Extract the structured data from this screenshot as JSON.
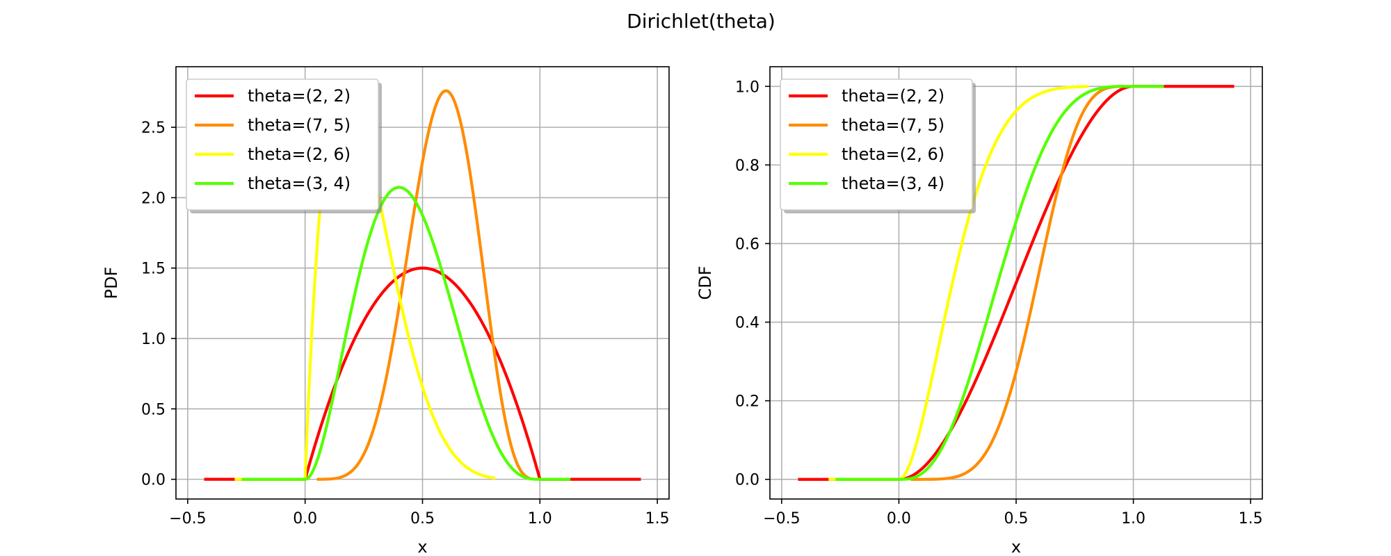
{
  "figure": {
    "title": "Dirichlet(theta)",
    "background": "#ffffff"
  },
  "chart_data": [
    {
      "type": "line",
      "title": "",
      "xlabel": "x",
      "ylabel": "PDF",
      "xlim": [
        -0.55,
        1.55
      ],
      "ylim": [
        -0.14,
        2.93
      ],
      "xticks": [
        -0.5,
        0.0,
        0.5,
        1.0,
        1.5
      ],
      "xtick_labels": [
        "−0.5",
        "0.0",
        "0.5",
        "1.0",
        "1.5"
      ],
      "yticks": [
        0.0,
        0.5,
        1.0,
        1.5,
        2.0,
        2.5
      ],
      "ytick_labels": [
        "0.0",
        "0.5",
        "1.0",
        "1.5",
        "2.0",
        "2.5"
      ],
      "grid": true,
      "legend": "upper-left",
      "function": "pdf",
      "series": [
        {
          "name": "theta=(2, 2)",
          "a": 2,
          "b": 2,
          "color": "#ff0000",
          "xrange": [
            -0.43,
            1.43
          ]
        },
        {
          "name": "theta=(7, 5)",
          "a": 7,
          "b": 5,
          "color": "#ff8c00",
          "xrange": [
            0.05,
            0.96
          ]
        },
        {
          "name": "theta=(2, 6)",
          "a": 2,
          "b": 6,
          "color": "#ffff00",
          "xrange": [
            -0.3,
            0.81
          ]
        },
        {
          "name": "theta=(3, 4)",
          "a": 3,
          "b": 4,
          "color": "#55ff00",
          "xrange": [
            -0.27,
            1.13
          ]
        }
      ]
    },
    {
      "type": "line",
      "title": "",
      "xlabel": "x",
      "ylabel": "CDF",
      "xlim": [
        -0.55,
        1.55
      ],
      "ylim": [
        -0.05,
        1.05
      ],
      "xticks": [
        -0.5,
        0.0,
        0.5,
        1.0,
        1.5
      ],
      "xtick_labels": [
        "−0.5",
        "0.0",
        "0.5",
        "1.0",
        "1.5"
      ],
      "yticks": [
        0.0,
        0.2,
        0.4,
        0.6,
        0.8,
        1.0
      ],
      "ytick_labels": [
        "0.0",
        "0.2",
        "0.4",
        "0.6",
        "0.8",
        "1.0"
      ],
      "grid": true,
      "legend": "upper-left",
      "function": "cdf",
      "series": [
        {
          "name": "theta=(2, 2)",
          "a": 2,
          "b": 2,
          "color": "#ff0000",
          "xrange": [
            -0.43,
            1.43
          ]
        },
        {
          "name": "theta=(7, 5)",
          "a": 7,
          "b": 5,
          "color": "#ff8c00",
          "xrange": [
            0.05,
            0.96
          ]
        },
        {
          "name": "theta=(2, 6)",
          "a": 2,
          "b": 6,
          "color": "#ffff00",
          "xrange": [
            -0.3,
            0.81
          ]
        },
        {
          "name": "theta=(3, 4)",
          "a": 3,
          "b": 4,
          "color": "#55ff00",
          "xrange": [
            -0.27,
            1.13
          ]
        }
      ]
    }
  ]
}
